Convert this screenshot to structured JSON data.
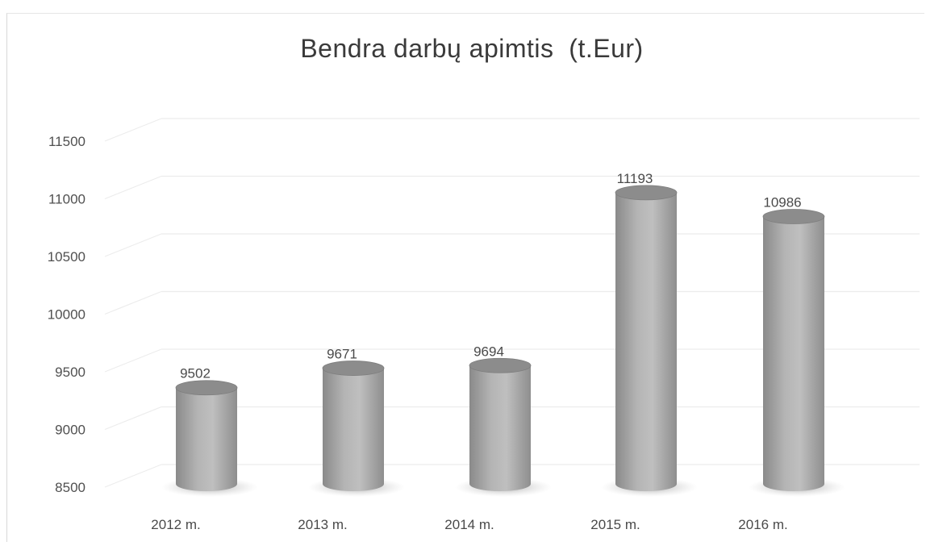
{
  "chart_data": {
    "type": "bar",
    "style": "3d-cylinder",
    "title": "Bendra darbų apimtis  (t.Eur)",
    "categories": [
      "2012 m.",
      "2013 m.",
      "2014 m.",
      "2015 m.",
      "2016 m."
    ],
    "values": [
      9502,
      9671,
      9694,
      11193,
      10986
    ],
    "data_labels": [
      "9502",
      "9671",
      "9694",
      "11193",
      "10986"
    ],
    "y_ticks": [
      8500,
      9000,
      9500,
      10000,
      10500,
      11000,
      11500
    ],
    "ylim": [
      8500,
      11500
    ],
    "grid": true,
    "legend": "none",
    "colors": {
      "bar_light": "#d2d2d2",
      "bar_mid": "#a8a8a8",
      "bar_dark": "#7a7a7a",
      "bar_top": "#8c8c8c",
      "grid": "#ececec",
      "text": "#4a4a4a"
    }
  }
}
